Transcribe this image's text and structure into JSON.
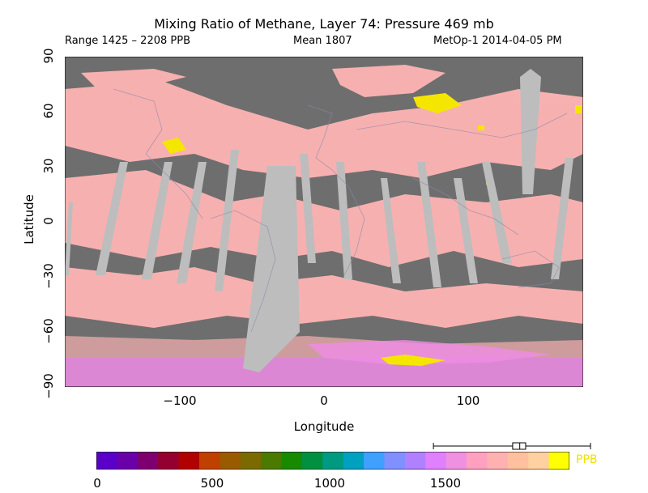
{
  "title": "Mixing Ratio of Methane, Layer 74: Pressure 469 mb",
  "range_text": "Range 1425 – 2208 PPB",
  "mean_text": "Mean 1807",
  "satellite_text": "MetOp-1 2014-04-05 PM",
  "y_axis": {
    "label": "Latitude",
    "ticks": [
      "90",
      "60",
      "30",
      "0",
      "−30",
      "−60",
      "−90"
    ],
    "tick_values": [
      90,
      60,
      30,
      0,
      -30,
      -60,
      -90
    ]
  },
  "x_axis": {
    "label": "Longitude",
    "ticks": [
      "−100",
      "0",
      "100"
    ],
    "tick_values": [
      -100,
      0,
      100
    ],
    "range": [
      -180,
      180
    ]
  },
  "colorbar": {
    "ticks": [
      "0",
      "500",
      "1000",
      "1500"
    ],
    "tick_values": [
      0,
      500,
      1000,
      1500
    ],
    "max": 2000,
    "units": "PPB",
    "colors": [
      "#5a00c8",
      "#6a00a8",
      "#7e0070",
      "#940030",
      "#b00000",
      "#c04000",
      "#9a5a00",
      "#7a6a00",
      "#4a7a00",
      "#188a00",
      "#009040",
      "#009a80",
      "#00a0c0",
      "#40a0ff",
      "#8090ff",
      "#b080ff",
      "#e080ff",
      "#f090e0",
      "#ffa0c0",
      "#ffb0b0",
      "#ffc0a0",
      "#ffd0a0",
      "#ffff00"
    ]
  },
  "map_colors": {
    "missing": "#6e6e6e",
    "no_data_swath": "#bdbdbd",
    "dominant": "#ffb4b4",
    "high": "#f5e600",
    "polar": "#f08ce6"
  },
  "boxplot": {
    "whisker_low": 1425,
    "q1": 1760,
    "median": 1790,
    "q3": 1815,
    "whisker_high": 2208
  }
}
